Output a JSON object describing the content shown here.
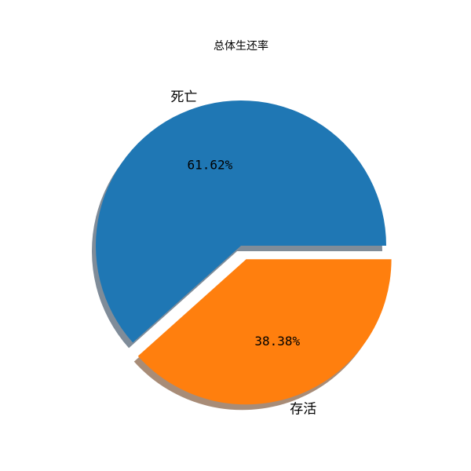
{
  "chart_data": {
    "type": "pie",
    "title": "总体生还率",
    "categories": [
      "死亡",
      "存活"
    ],
    "values": [
      61.62,
      38.38
    ],
    "percent_labels": [
      "61.62%",
      "38.38%"
    ],
    "colors": [
      "#1f77b4",
      "#ff7f0e"
    ],
    "explode": [
      0,
      0.1
    ],
    "shadow": true,
    "start_angle_deg": 0,
    "legend": "none",
    "grid": false
  }
}
